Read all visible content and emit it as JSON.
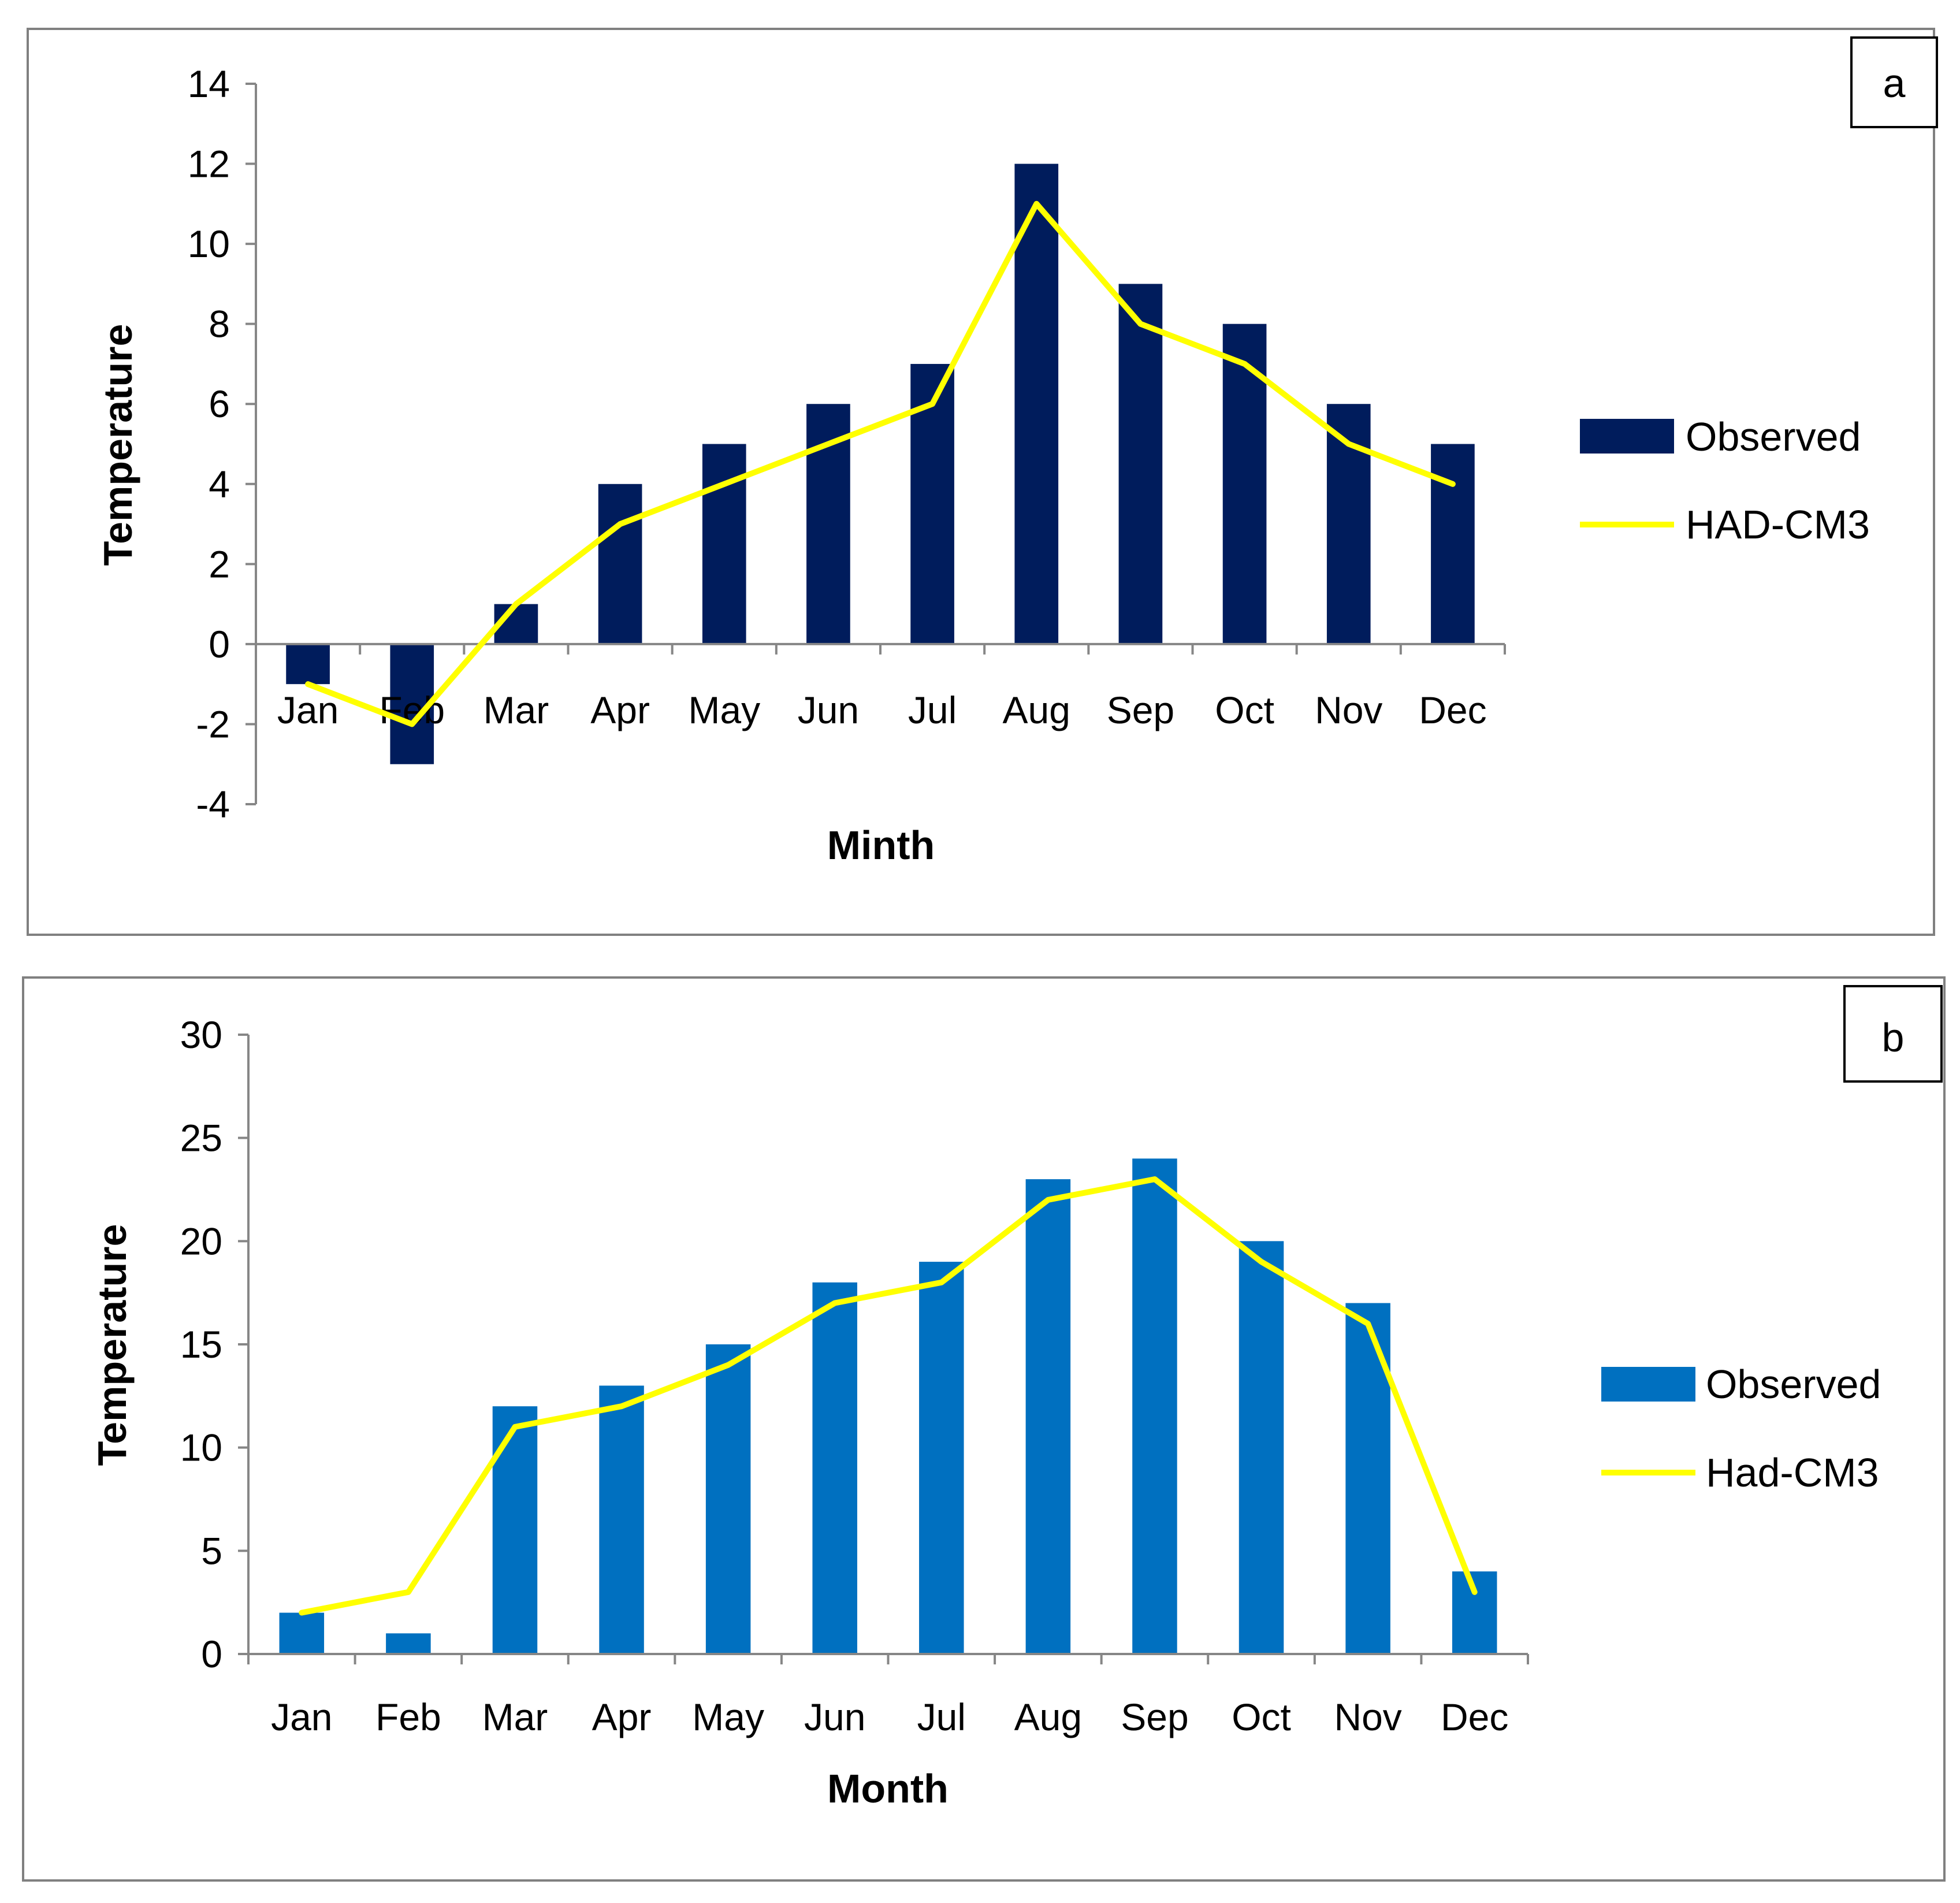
{
  "chart_data": [
    {
      "type": "bar",
      "panel_label": "a",
      "categories": [
        "Jan",
        "Feb",
        "Mar",
        "Apr",
        "May",
        "Jun",
        "Jul",
        "Aug",
        "Sep",
        "Oct",
        "Nov",
        "Dec"
      ],
      "series": [
        {
          "name": "Observed",
          "kind": "bar",
          "color": "#001C5C",
          "values": [
            -1,
            -3,
            1,
            4,
            5,
            6,
            7,
            12,
            9,
            8,
            6,
            5
          ]
        },
        {
          "name": "HAD-CM3",
          "kind": "line",
          "color": "#FFFF00",
          "values": [
            -1,
            -2,
            1,
            3,
            4,
            5,
            6,
            11,
            8,
            7,
            5,
            4
          ]
        }
      ],
      "xlabel": "Minth",
      "ylabel": "Temperature",
      "ylim": [
        -4,
        14
      ],
      "yticks": [
        -4,
        -2,
        0,
        2,
        4,
        6,
        8,
        10,
        12,
        14
      ],
      "grid": false,
      "legend_position": "right"
    },
    {
      "type": "bar",
      "panel_label": "b",
      "categories": [
        "Jan",
        "Feb",
        "Mar",
        "Apr",
        "May",
        "Jun",
        "Jul",
        "Aug",
        "Sep",
        "Oct",
        "Nov",
        "Dec"
      ],
      "series": [
        {
          "name": "Observed",
          "kind": "bar",
          "color": "#0070C0",
          "values": [
            2,
            1,
            12,
            13,
            15,
            18,
            19,
            23,
            24,
            20,
            17,
            4
          ]
        },
        {
          "name": "Had-CM3",
          "kind": "line",
          "color": "#FFFF00",
          "values": [
            2,
            3,
            11,
            12,
            14,
            17,
            18,
            22,
            23,
            19,
            16,
            3
          ]
        }
      ],
      "xlabel": "Month",
      "ylabel": "Temperature",
      "ylim": [
        0,
        30
      ],
      "yticks": [
        0,
        5,
        10,
        15,
        20,
        25,
        30
      ],
      "grid": false,
      "legend_position": "right"
    }
  ]
}
